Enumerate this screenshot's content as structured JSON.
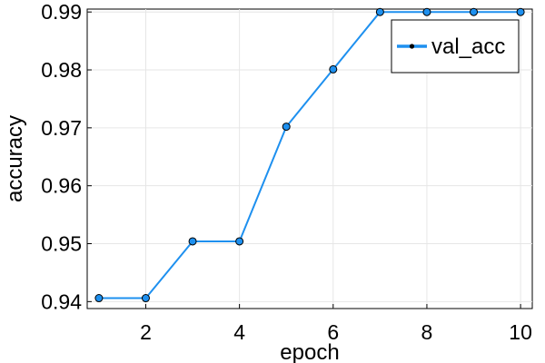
{
  "chart_data": {
    "type": "line",
    "xlabel": "epoch",
    "ylabel": "accuracy",
    "xlim": [
      0.75,
      10.25
    ],
    "ylim": [
      0.9388,
      0.9905
    ],
    "xticks": [
      2,
      4,
      6,
      8,
      10
    ],
    "yticks": [
      0.94,
      0.95,
      0.96,
      0.97,
      0.98,
      0.99
    ],
    "grid": true,
    "legend_position": "top-right",
    "series": [
      {
        "name": "val_acc",
        "color": "#1e90ef",
        "marker": "circle",
        "x": [
          1,
          2,
          3,
          4,
          5,
          6,
          7,
          8,
          9,
          10
        ],
        "y": [
          0.9406,
          0.9406,
          0.9504,
          0.9504,
          0.9702,
          0.9801,
          0.99,
          0.99,
          0.99,
          0.99
        ]
      }
    ]
  }
}
